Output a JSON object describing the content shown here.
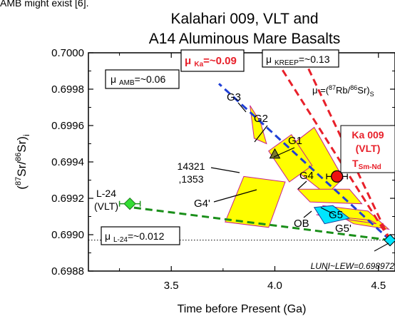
{
  "header_fragment": "AMB might exist [6].",
  "chart_data": {
    "type": "scatter",
    "title_lines": [
      "Kalahari 009, VLT and",
      "A14 Aluminous Mare Basalts"
    ],
    "xlabel": "Time before Present (Ga)",
    "ylabel": "(87Sr/86Sr)i",
    "xlim": [
      3.1,
      4.58
    ],
    "ylim": [
      0.6988,
      0.7
    ],
    "xticks": [
      3.5,
      4.0,
      4.5
    ],
    "yticks": [
      0.6988,
      0.699,
      0.6992,
      0.6994,
      0.6996,
      0.6998,
      0.7
    ],
    "xtick_labels": [
      "3.5",
      "4.0",
      "4.5"
    ],
    "ytick_labels": [
      "0.6988",
      "0.6990",
      "0.6992",
      "0.6994",
      "0.6996",
      "0.6998",
      "0.7000"
    ],
    "colors": {
      "amb": "#1f3fd6",
      "kreep": "#e8202a",
      "ka": "#e8202a",
      "l24": "#1a8f1a",
      "mu_ka_text": "#e8202a",
      "ka009_text": "#e8202a",
      "g_fill": "#ffff00",
      "g_edge": "#c8208c",
      "ob": "#00e5ff",
      "l24_point": "#33dd33"
    },
    "evolution_lines": [
      {
        "id": "amb",
        "x": [
          4.556,
          3.73
        ],
        "y": [
          0.69897,
          0.69983
        ]
      },
      {
        "id": "kreep",
        "x": [
          4.556,
          4.13
        ],
        "y": [
          0.69897,
          0.69999
        ]
      },
      {
        "id": "ka",
        "x": [
          4.556,
          3.99
        ],
        "y": [
          0.69897,
          0.69999
        ]
      },
      {
        "id": "l24",
        "x": [
          4.556,
          3.31
        ],
        "y": [
          0.69897,
          0.69915
        ]
      }
    ],
    "mu_boxes": [
      {
        "id": "amb",
        "text": "μ AMB=~0.06"
      },
      {
        "id": "ka",
        "text": "μ Ka=~0.09"
      },
      {
        "id": "kreep",
        "text": "μ KREEP=~0.13"
      },
      {
        "id": "l24",
        "text": "μ L-24=~0.012"
      }
    ],
    "mu_def": "μ =(87Rb/86Sr)S",
    "points": [
      {
        "id": "ka009",
        "label": [
          "Ka 009",
          "(VLT)",
          "TSm-Nd"
        ],
        "x": 4.3,
        "y": 0.69932,
        "xerr": 0.05
      },
      {
        "id": "l24",
        "label": [
          "L-24",
          "(VLT)"
        ],
        "x": 3.3,
        "y": 0.69917,
        "xerr": 0.05
      },
      {
        "id": "lew",
        "label": [
          "LUNI~LEW=0.698972"
        ],
        "x": 4.556,
        "y": 0.69897
      },
      {
        "id": "s14321",
        "label": [
          "14321",
          ",1353"
        ],
        "x": 4.0,
        "y": 0.69944
      }
    ],
    "polygons": [
      {
        "id": "G1",
        "label": "G1",
        "x": [
          4.02,
          4.19,
          4.33,
          4.25,
          4.05
        ],
        "y": [
          0.69944,
          0.69959,
          0.69931,
          0.69922,
          0.6994
        ]
      },
      {
        "id": "G2",
        "label": "G2",
        "x": [
          3.97,
          4.08,
          4.18,
          4.07
        ],
        "y": [
          0.69946,
          0.69955,
          0.69938,
          0.69929
        ]
      },
      {
        "id": "G3",
        "label": "G3",
        "x": [
          3.88,
          3.93,
          3.96,
          3.9
        ],
        "y": [
          0.69971,
          0.69962,
          0.6995,
          0.69953
        ]
      },
      {
        "id": "G4",
        "label": "G4",
        "x": [
          4.11,
          4.36,
          4.42,
          4.17
        ],
        "y": [
          0.69925,
          0.69925,
          0.69917,
          0.69918
        ]
      },
      {
        "id": "G4p",
        "label": "G4'",
        "x": [
          3.85,
          4.05,
          3.97,
          3.76
        ],
        "y": [
          0.69932,
          0.69929,
          0.69904,
          0.69907
        ]
      },
      {
        "id": "G5",
        "label": "G5",
        "x": [
          4.23,
          4.45,
          4.55,
          4.38
        ],
        "y": [
          0.69916,
          0.69913,
          0.69903,
          0.69906
        ]
      },
      {
        "id": "G5p",
        "label": "G5'",
        "x": [
          4.2,
          4.46,
          4.49,
          4.25
        ],
        "y": [
          0.69911,
          0.69908,
          0.69906,
          0.6991
        ]
      },
      {
        "id": "OB",
        "label": "OB",
        "x": [
          4.19,
          4.28,
          4.36,
          4.24
        ],
        "y": [
          0.69915,
          0.69916,
          0.69909,
          0.69906
        ]
      }
    ],
    "lew_dotted_y": 0.69897,
    "grid": false,
    "legend": "none"
  }
}
